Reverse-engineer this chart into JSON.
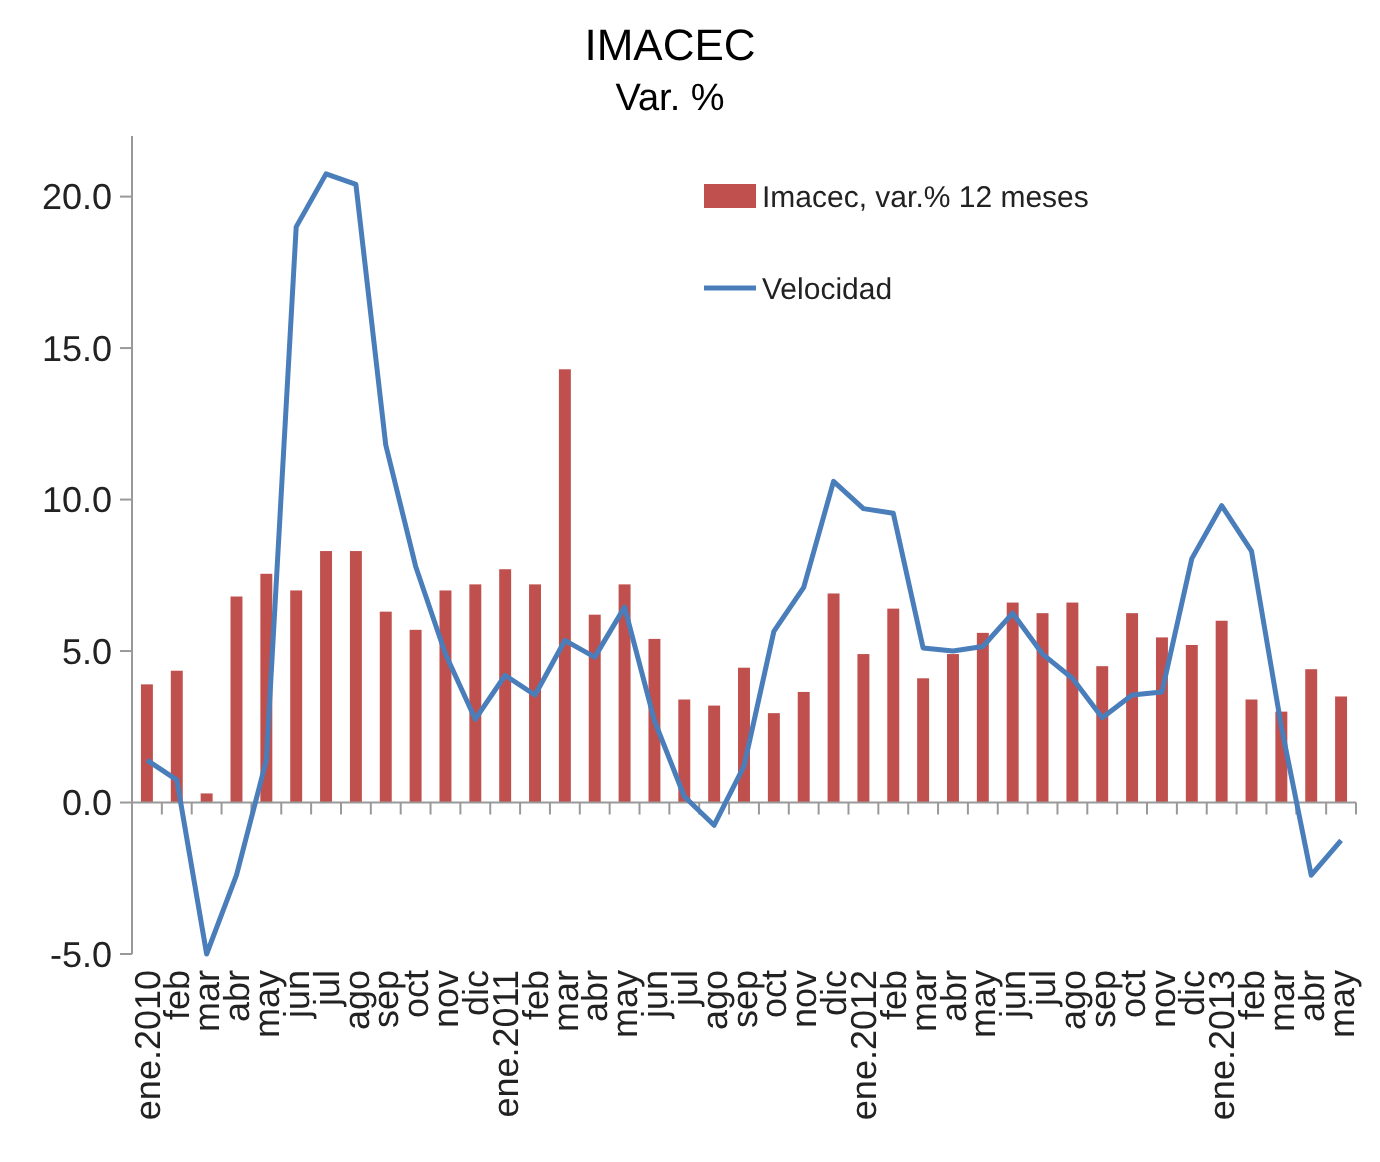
{
  "chart_data": {
    "type": "bar",
    "title": "IMACEC",
    "subtitle": "Var. %",
    "categories": [
      "ene.2010",
      "feb",
      "mar",
      "abr",
      "may",
      "jun",
      "jul",
      "ago",
      "sep",
      "oct",
      "nov",
      "dic",
      "ene.2011",
      "feb",
      "mar",
      "abr",
      "may",
      "jun",
      "jul",
      "ago",
      "sep",
      "oct",
      "nov",
      "dic",
      "ene.2012",
      "feb",
      "mar",
      "abr",
      "may",
      "jun",
      "jul",
      "ago",
      "sep",
      "oct",
      "nov",
      "dic",
      "ene.2013",
      "feb",
      "mar",
      "abr",
      "may"
    ],
    "series": [
      {
        "name": "Imacec, var.% 12 meses",
        "color": "#c0504d",
        "values": [
          3.9,
          4.35,
          0.3,
          6.8,
          7.55,
          7.0,
          8.3,
          8.3,
          6.3,
          5.7,
          7.0,
          7.2,
          7.7,
          7.2,
          14.3,
          6.2,
          7.2,
          5.4,
          3.4,
          3.2,
          4.45,
          2.95,
          3.65,
          6.9,
          4.9,
          6.4,
          4.1,
          4.9,
          5.6,
          6.6,
          6.25,
          6.6,
          4.5,
          6.25,
          5.45,
          5.2,
          6.0,
          3.4,
          3.0,
          4.4,
          3.5
        ]
      },
      {
        "name": "Velocidad",
        "type": "line",
        "color": "#4a7ebb",
        "values": [
          1.4,
          0.75,
          -5.0,
          -2.4,
          1.4,
          19.0,
          20.75,
          20.4,
          11.8,
          7.8,
          4.9,
          2.75,
          4.2,
          3.55,
          5.35,
          4.8,
          6.45,
          2.7,
          0.2,
          -0.75,
          1.2,
          5.65,
          7.1,
          10.6,
          9.7,
          9.55,
          5.1,
          5.0,
          5.15,
          6.25,
          4.9,
          4.1,
          2.8,
          3.55,
          3.65,
          8.05,
          9.8,
          8.3,
          2.5,
          -2.4,
          -1.25
        ]
      }
    ],
    "ylim": [
      -5,
      22
    ],
    "yticks": [
      {
        "value": -5,
        "label": "-5.0"
      },
      {
        "value": 0,
        "label": "0.0"
      },
      {
        "value": 5,
        "label": "5.0"
      },
      {
        "value": 10,
        "label": "10.0"
      },
      {
        "value": 15,
        "label": "15.0"
      },
      {
        "value": 20,
        "label": "20.0"
      }
    ],
    "legend": "top right",
    "marker": "none",
    "line_style": "solid"
  }
}
